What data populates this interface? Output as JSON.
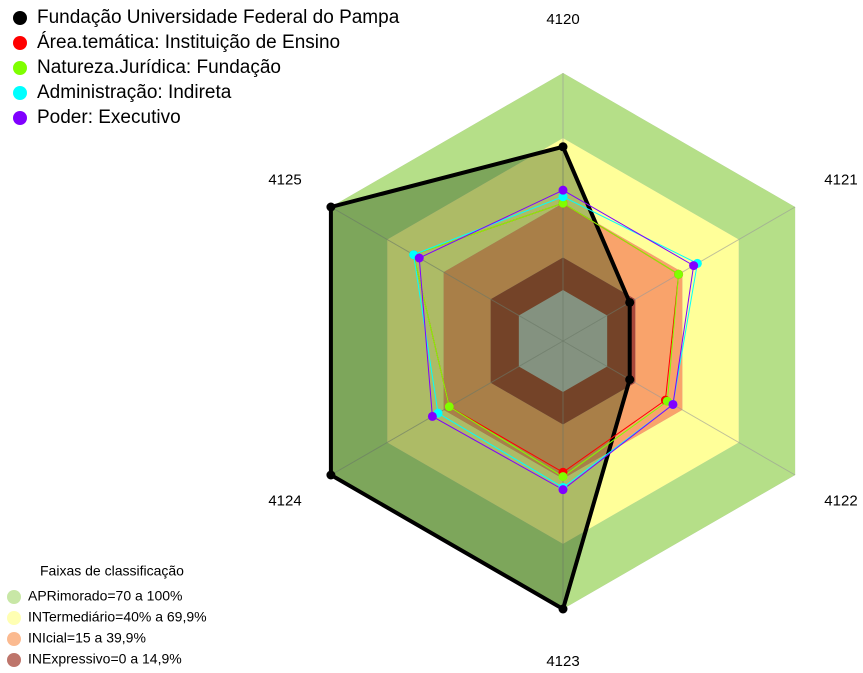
{
  "chart_data": {
    "type": "radar",
    "categories": [
      "4120",
      "4121",
      "4122",
      "4123",
      "4124",
      "4125"
    ],
    "rlim": [
      -23.5,
      100
    ],
    "series": [
      {
        "name": "Fundação Universidade Federal do Pampa",
        "color": "#000000",
        "values": [
          66,
          12,
          12,
          100,
          100,
          100
        ]
      },
      {
        "name": "Área.temática: Instituição de Ensino",
        "color": "#ff0000",
        "values": [
          40,
          38,
          31,
          37,
          37,
          56
        ]
      },
      {
        "name": "Natureza.Jurídica: Fundação",
        "color": "#7fff00",
        "values": [
          40,
          38,
          32,
          39,
          37,
          56
        ]
      },
      {
        "name": "Administração: Indireta",
        "color": "#00ffff",
        "values": [
          43,
          48,
          35,
          44,
          43,
          56
        ]
      },
      {
        "name": "Poder: Executivo",
        "color": "#8000ff",
        "values": [
          46,
          46,
          35,
          45,
          46,
          53
        ]
      }
    ],
    "bands_title": "Faixas de classificação",
    "bands": [
      {
        "label": "APRimorado=70 a 100%",
        "color": "#b5df88",
        "from": 70,
        "to": 100
      },
      {
        "label": "INTermediário=40% a 69,9%",
        "color": "#ffff99",
        "from": 40,
        "to": 70
      },
      {
        "label": "INIcial=15 a 39,9%",
        "color": "#f9a36b",
        "from": 15,
        "to": 40
      },
      {
        "label": "INExpressivo=0 a 14,9%",
        "color": "#a8473a",
        "from": 0,
        "to": 15
      }
    ]
  }
}
